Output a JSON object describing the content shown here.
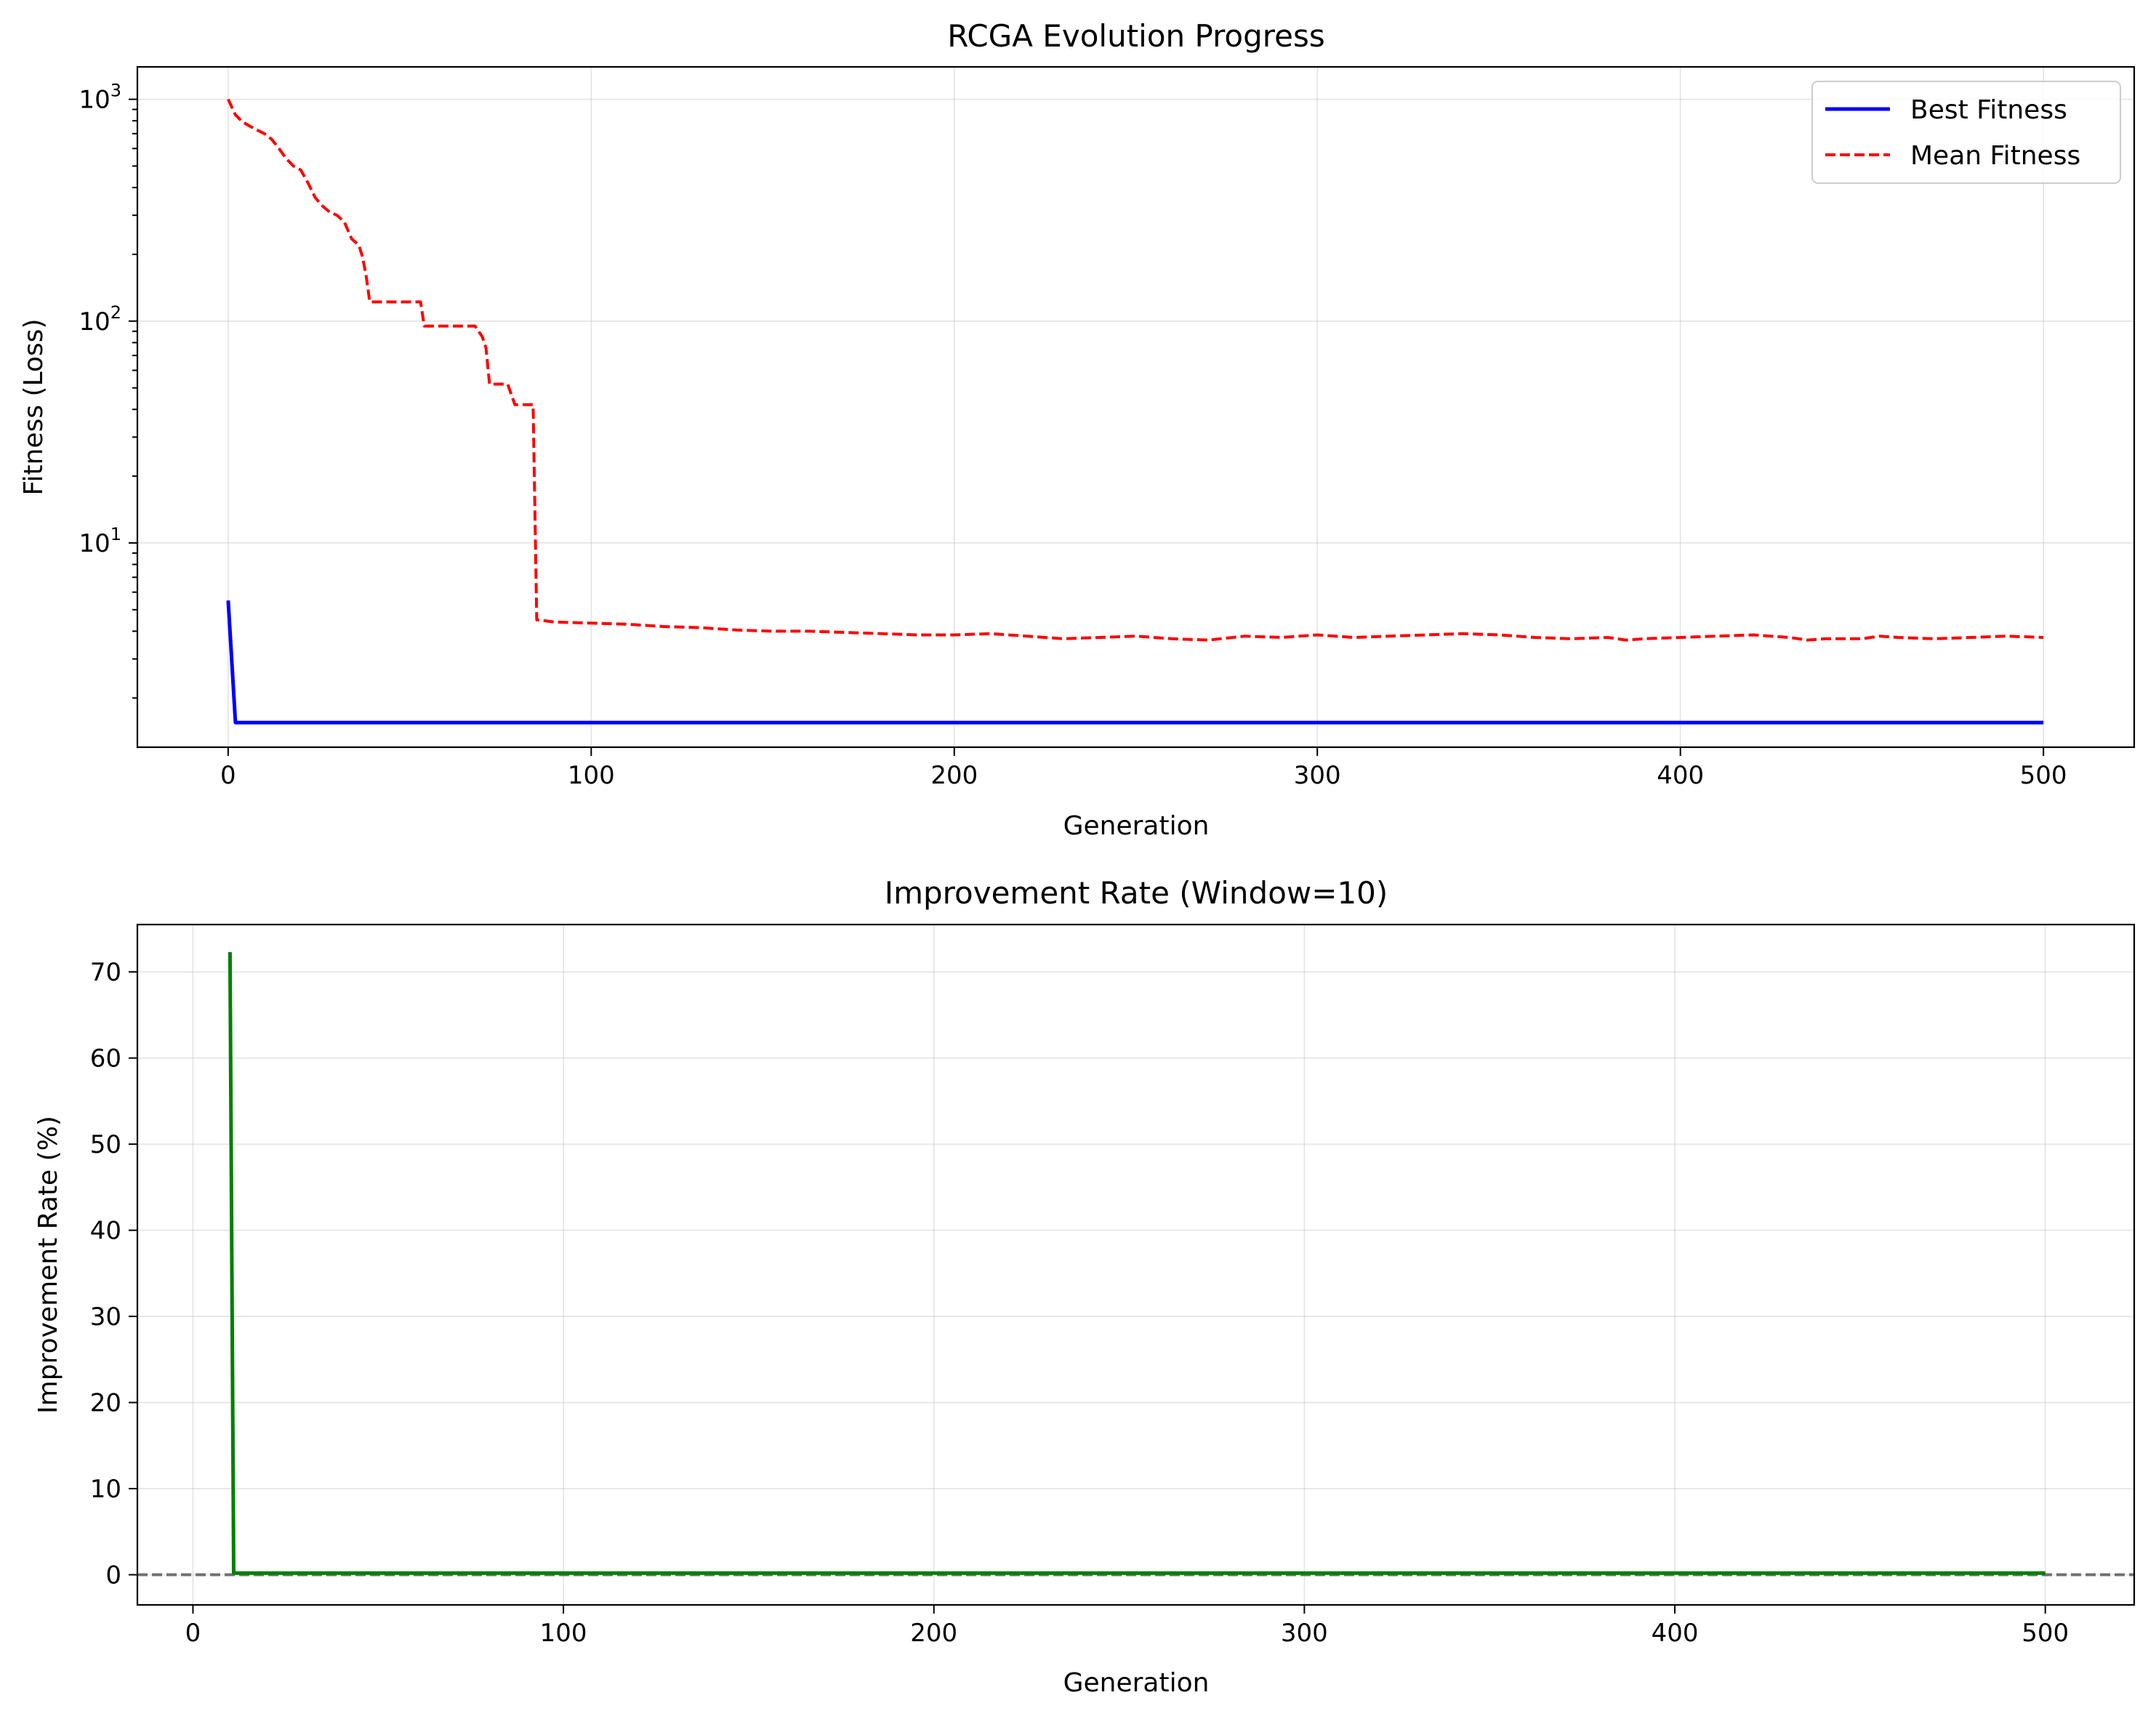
{
  "chart_data": [
    {
      "type": "line",
      "title": "RCGA Evolution Progress",
      "xlabel": "Generation",
      "ylabel": "Fitness (Loss)",
      "xlim": [
        -25,
        525
      ],
      "ylim": [
        1.2,
        1400
      ],
      "yscale": "log",
      "grid": true,
      "legend": "top-right",
      "x_ticks": [
        0,
        100,
        200,
        300,
        400,
        500
      ],
      "y_ticks": [
        {
          "value": 10,
          "base": "10",
          "exp": "1"
        },
        {
          "value": 100,
          "base": "10",
          "exp": "2"
        },
        {
          "value": 1000,
          "base": "10",
          "exp": "3"
        }
      ],
      "series": [
        {
          "name": "Best Fitness",
          "color": "#0000ff",
          "style": "solid",
          "points": [
            [
              0,
              5.5
            ],
            [
              2,
              1.55
            ],
            [
              500,
              1.55
            ]
          ]
        },
        {
          "name": "Mean Fitness",
          "color": "#ff0000",
          "style": "dashed",
          "points": [
            [
              0,
              1000
            ],
            [
              2,
              850
            ],
            [
              4,
              790
            ],
            [
              7,
              740
            ],
            [
              10,
              700
            ],
            [
              12,
              660
            ],
            [
              14,
              600
            ],
            [
              16,
              540
            ],
            [
              18,
              500
            ],
            [
              20,
              480
            ],
            [
              22,
              420
            ],
            [
              24,
              360
            ],
            [
              26,
              330
            ],
            [
              28,
              310
            ],
            [
              30,
              300
            ],
            [
              32,
              280
            ],
            [
              34,
              235
            ],
            [
              36,
              220
            ],
            [
              37,
              195
            ],
            [
              38,
              160
            ],
            [
              39,
              122
            ],
            [
              53,
              122
            ],
            [
              54,
              95
            ],
            [
              68,
              95
            ],
            [
              70,
              85
            ],
            [
              71,
              76
            ],
            [
              72,
              52
            ],
            [
              77,
              52
            ],
            [
              79,
              42
            ],
            [
              84,
              42
            ],
            [
              85,
              4.5
            ],
            [
              90,
              4.4
            ],
            [
              100,
              4.35
            ],
            [
              110,
              4.3
            ],
            [
              120,
              4.2
            ],
            [
              130,
              4.15
            ],
            [
              140,
              4.05
            ],
            [
              150,
              4.0
            ],
            [
              160,
              4.0
            ],
            [
              170,
              3.95
            ],
            [
              180,
              3.9
            ],
            [
              190,
              3.85
            ],
            [
              200,
              3.85
            ],
            [
              210,
              3.9
            ],
            [
              220,
              3.8
            ],
            [
              230,
              3.7
            ],
            [
              240,
              3.75
            ],
            [
              250,
              3.8
            ],
            [
              260,
              3.7
            ],
            [
              270,
              3.65
            ],
            [
              280,
              3.8
            ],
            [
              290,
              3.75
            ],
            [
              300,
              3.85
            ],
            [
              310,
              3.75
            ],
            [
              320,
              3.8
            ],
            [
              330,
              3.85
            ],
            [
              340,
              3.9
            ],
            [
              350,
              3.85
            ],
            [
              360,
              3.75
            ],
            [
              370,
              3.7
            ],
            [
              380,
              3.75
            ],
            [
              385,
              3.65
            ],
            [
              390,
              3.7
            ],
            [
              400,
              3.75
            ],
            [
              410,
              3.8
            ],
            [
              420,
              3.85
            ],
            [
              430,
              3.75
            ],
            [
              435,
              3.65
            ],
            [
              440,
              3.7
            ],
            [
              450,
              3.7
            ],
            [
              455,
              3.8
            ],
            [
              460,
              3.75
            ],
            [
              470,
              3.7
            ],
            [
              480,
              3.75
            ],
            [
              490,
              3.8
            ],
            [
              500,
              3.75
            ]
          ]
        }
      ]
    },
    {
      "type": "line",
      "title": "Improvement Rate (Window=10)",
      "xlabel": "Generation",
      "ylabel": "Improvement Rate (%)",
      "xlim": [
        -15,
        524
      ],
      "ylim": [
        -3.5,
        75.5
      ],
      "grid": true,
      "x_ticks": [
        0,
        100,
        200,
        300,
        400,
        500
      ],
      "y_ticks": [
        0,
        10,
        20,
        30,
        40,
        50,
        60,
        70
      ],
      "reference_line": {
        "y": 0,
        "color": "#707070",
        "style": "dashed"
      },
      "series": [
        {
          "color": "#008000",
          "style": "solid",
          "points": [
            [
              10,
              72.3
            ],
            [
              11,
              0.2
            ],
            [
              500,
              0.2
            ]
          ]
        }
      ]
    }
  ]
}
